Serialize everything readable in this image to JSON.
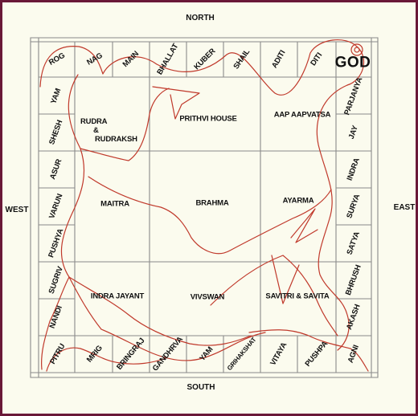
{
  "directions": {
    "north": "NORTH",
    "south": "SOUTH",
    "west": "WEST",
    "east": "EAST"
  },
  "top_row": [
    "ROG",
    "NAG",
    "MAIN",
    "BHALLAT",
    "KUBER",
    "SHAIL",
    "ADITI",
    "DITI"
  ],
  "corner_label": "GOD",
  "right_col": [
    "PARJANYA",
    "JAY",
    "INDRA",
    "SURYA",
    "SATYA",
    "BHRUSH",
    "AKASH",
    "AGNI"
  ],
  "left_col": [
    "YAM",
    "SHESH",
    "ASUR",
    "VARUN",
    "PUSHYA",
    "SUGRIV",
    "NANDI",
    "PITRU"
  ],
  "bottom_row": [
    "MRIG",
    "BRINGRAJ",
    "GANDHRVA",
    "YAM",
    "GRIHAKSHAT",
    "VITAYA",
    "PUSHPA"
  ],
  "inner": {
    "rudra": "RUDRA",
    "amp": "&",
    "rudraksh": "RUDRAKSH",
    "prithvi": "PRITHVI HOUSE",
    "aap": "AAP AAPVATSA",
    "maitra": "MAITRA",
    "brahma": "BRAHMA",
    "ayarma": "AYARMA",
    "indra_jayant": "INDRA JAYANT",
    "vivswan": "VIVSWAN",
    "savitri": "SAVITRI & SAVITA"
  },
  "colors": {
    "outline": "#c0392b",
    "grid": "#8a8a8a",
    "text": "#111111",
    "frame": "#6a1838",
    "paper": "#fbfbee"
  }
}
